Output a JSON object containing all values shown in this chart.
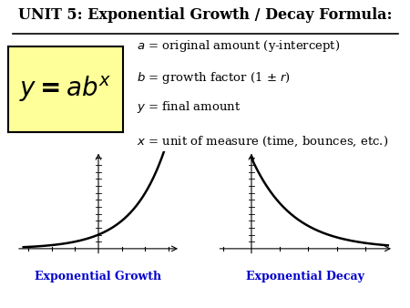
{
  "title": "UNIT 5: Exponential Growth / Decay Formula:",
  "formula_box_color": "#FFFF99",
  "formula_box_edge": "#000000",
  "definitions": [
    "a = original amount (y-intercept)",
    "b = growth factor (1 ± r)",
    "y = final amount",
    "x = unit of measure (time, bounces, etc.)"
  ],
  "growth_label": "Exponential Growth",
  "decay_label": "Exponential Decay",
  "label_color": "#0000CC",
  "background_color": "#FFFFFF",
  "curve_color": "#000000",
  "text_color": "#000000"
}
